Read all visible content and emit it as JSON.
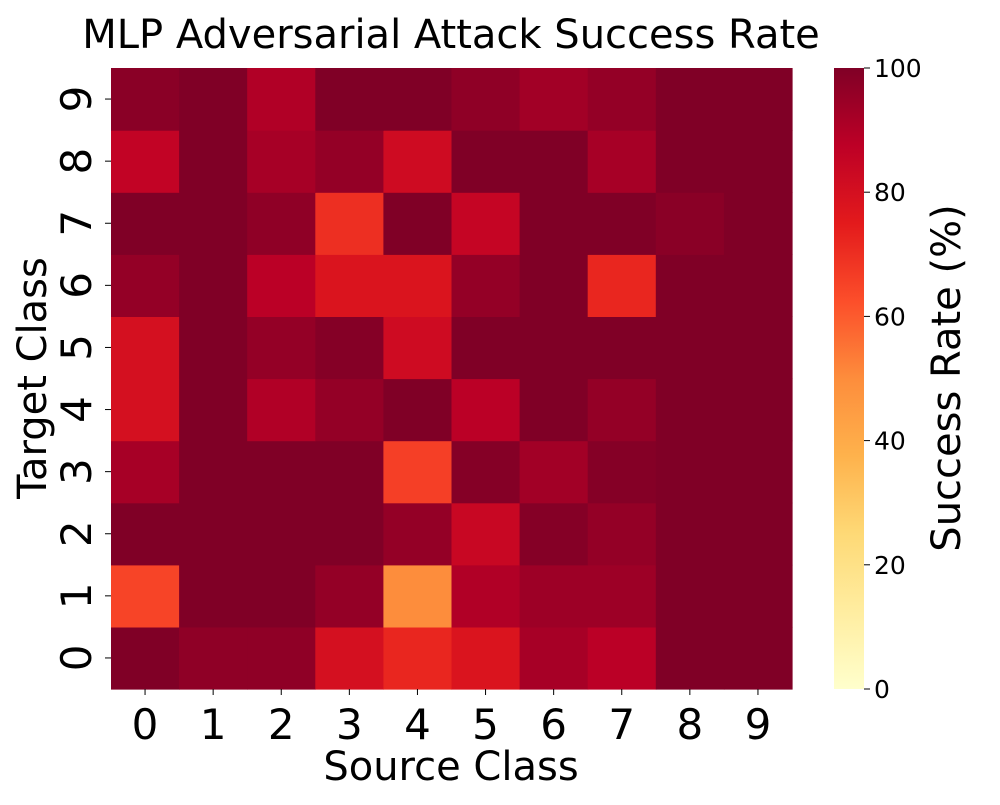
{
  "chart_data": {
    "type": "heatmap",
    "title": "MLP Adversarial Attack Success Rate",
    "xlabel": "Source Class",
    "ylabel": "Target Class",
    "x_categories": [
      "0",
      "1",
      "2",
      "3",
      "4",
      "5",
      "6",
      "7",
      "8",
      "9"
    ],
    "y_categories": [
      "0",
      "1",
      "2",
      "3",
      "4",
      "5",
      "6",
      "7",
      "8",
      "9"
    ],
    "values": [
      [
        100,
        97,
        97,
        80,
        72,
        78,
        92,
        88,
        100,
        100
      ],
      [
        65,
        100,
        100,
        96,
        50,
        90,
        94,
        94,
        100,
        100
      ],
      [
        100,
        100,
        100,
        100,
        96,
        84,
        99,
        96,
        100,
        100
      ],
      [
        92,
        100,
        100,
        100,
        66,
        99,
        93,
        99,
        100,
        100
      ],
      [
        80,
        100,
        90,
        96,
        100,
        88,
        100,
        96,
        100,
        100
      ],
      [
        80,
        100,
        96,
        99,
        82,
        100,
        100,
        100,
        100,
        100
      ],
      [
        96,
        100,
        88,
        78,
        78,
        96,
        100,
        72,
        100,
        100
      ],
      [
        100,
        100,
        97,
        70,
        100,
        85,
        100,
        100,
        98,
        100
      ],
      [
        86,
        100,
        92,
        96,
        82,
        100,
        100,
        92,
        100,
        100
      ],
      [
        98,
        100,
        90,
        100,
        100,
        97,
        93,
        96,
        100,
        100
      ]
    ],
    "colormap": "YlOrRd",
    "colorbar": {
      "label": "Success Rate (%)",
      "range": [
        0,
        100
      ],
      "ticks": [
        "0",
        "20",
        "40",
        "60",
        "80",
        "100"
      ],
      "tick_values": [
        0,
        20,
        40,
        60,
        80,
        100
      ],
      "colors": [
        "#ffffcc",
        "#ffeda0",
        "#fed976",
        "#feb24c",
        "#fd8d3c",
        "#fc4e2a",
        "#e31a1c",
        "#bd0026",
        "#800026"
      ]
    },
    "legend": "colorbar-right",
    "grid": false
  }
}
